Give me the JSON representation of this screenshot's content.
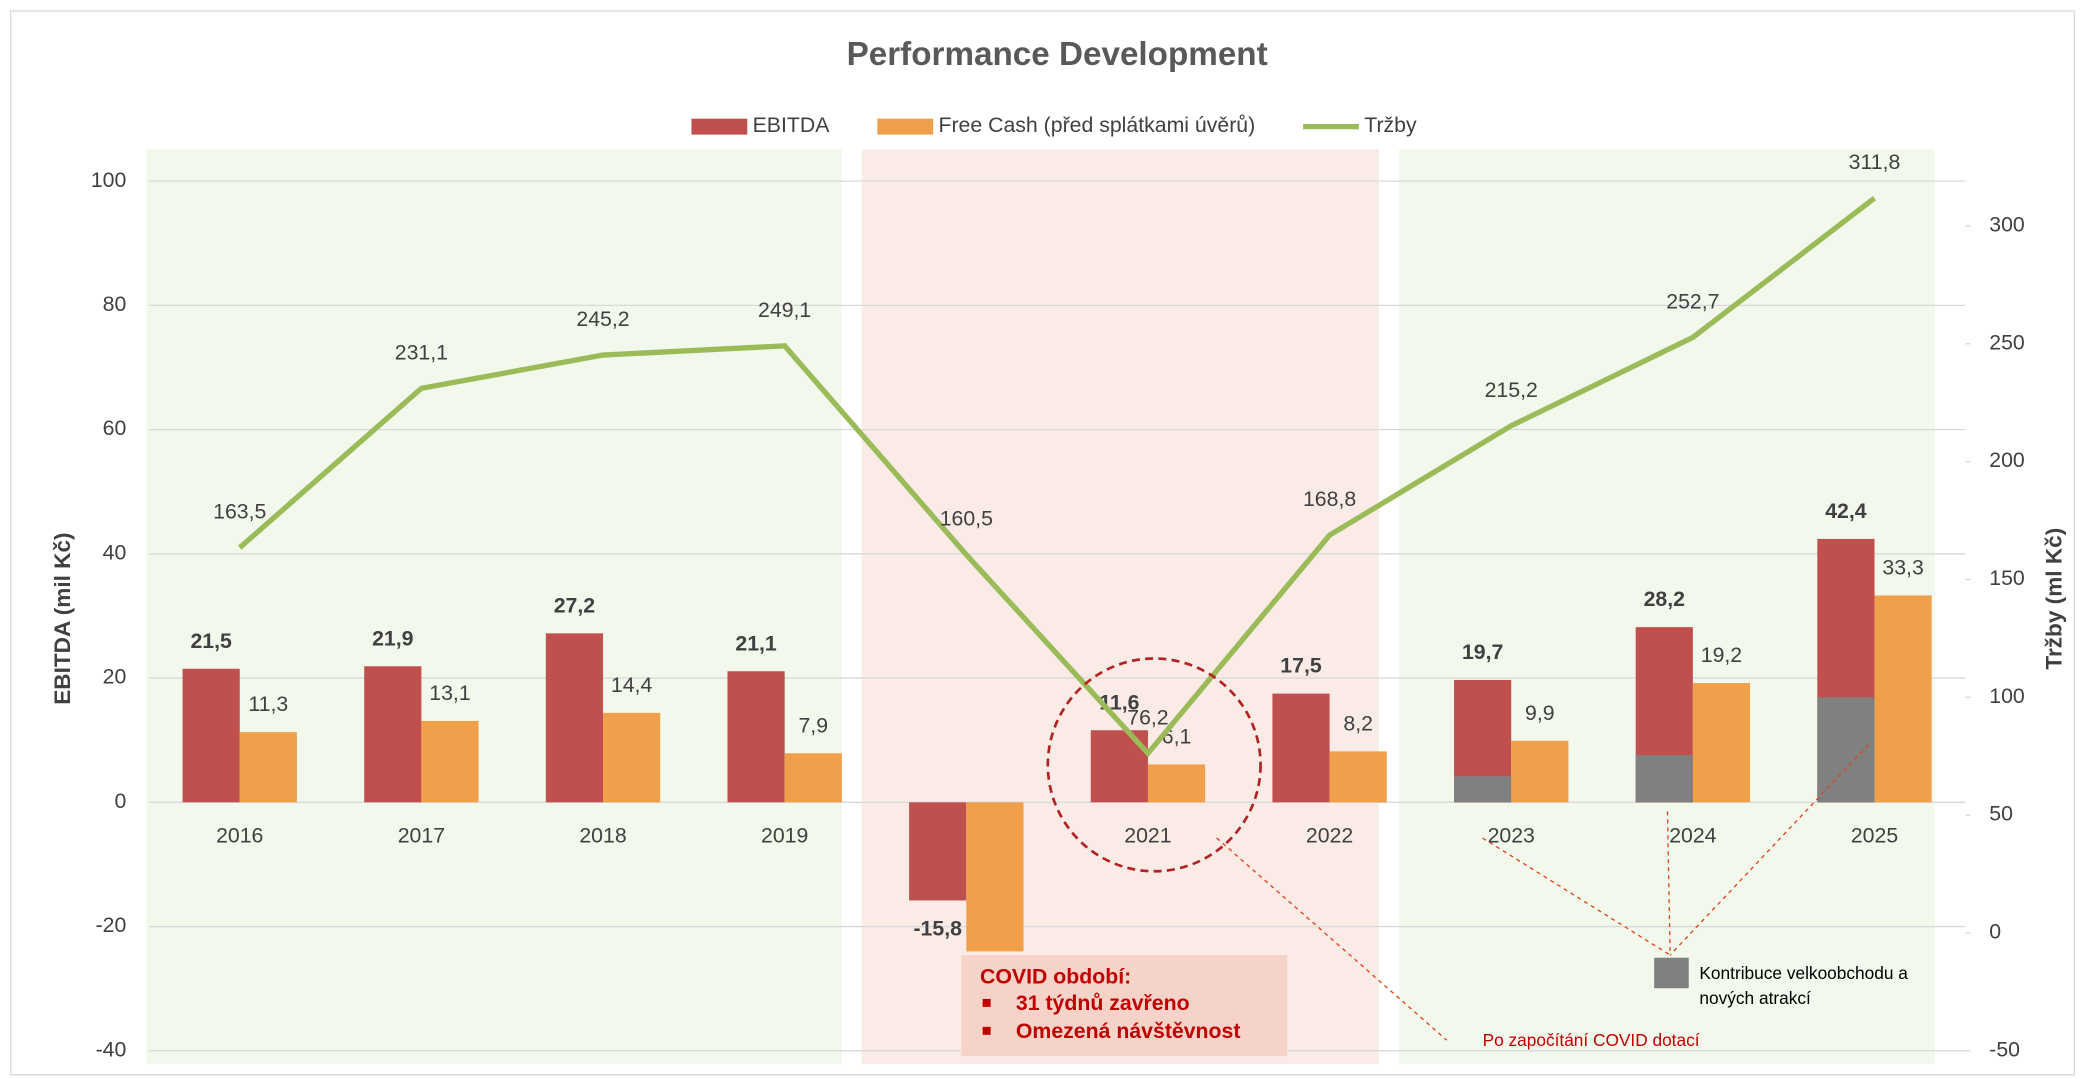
{
  "chart_data": {
    "type": "bar",
    "title": "Performance Development",
    "y_label": "EBITDA (mil Kč)",
    "y2_label": "Tržby (ml Kč)",
    "categories": [
      "2016",
      "2017",
      "2018",
      "2019",
      "2020",
      "2021",
      "2022",
      "2023",
      "2024",
      "2025"
    ],
    "series": [
      {
        "name": "EBITDA",
        "type": "bar",
        "color": "#c0504d",
        "values": [
          21.5,
          21.9,
          27.2,
          21.1,
          -15.8,
          11.6,
          17.5,
          19.7,
          28.2,
          42.4
        ],
        "value_labels": [
          "21,5",
          "21,9",
          "27,2",
          "21,1",
          "-15,8",
          "11,6",
          "17,5",
          "19,7",
          "28,2",
          "42,4"
        ]
      },
      {
        "name": "Free Cash (před splátkami úvěrů)",
        "type": "bar",
        "color": "#f0a04b",
        "values": [
          11.3,
          13.1,
          14.4,
          7.9,
          -24,
          6.1,
          8.2,
          9.9,
          19.2,
          33.3
        ],
        "value_labels": [
          "11,3",
          "13,1",
          "14,4",
          "7,9",
          null,
          "6,1",
          "8,2",
          "9,9",
          "19,2",
          "33,3"
        ]
      },
      {
        "name": "Tržby",
        "type": "line",
        "axis": "y2",
        "color": "#9bbb59",
        "values": [
          163.5,
          231.1,
          245.2,
          249.1,
          160.5,
          76.2,
          168.8,
          215.2,
          252.7,
          311.8
        ],
        "value_labels": [
          "163,5",
          "231,1",
          "245,2",
          "249,1",
          "160,5",
          "76,2",
          "168,8",
          "215,2",
          "252,7",
          "311,8"
        ]
      },
      {
        "name": "Kontribuce velkoobchodu a nových atrakcí",
        "type": "overlay",
        "color": "#808080",
        "values": [
          null,
          null,
          null,
          null,
          null,
          null,
          null,
          4.2,
          7.6,
          16.9
        ]
      }
    ],
    "ylim": [
      -40,
      100
    ],
    "yticks": [
      -40,
      -20,
      0,
      20,
      40,
      60,
      80,
      100
    ],
    "y2lim": [
      -50,
      319
    ],
    "y2ticks": [
      -50,
      0,
      50,
      100,
      150,
      200,
      250,
      300
    ],
    "grid": true,
    "legend": "top",
    "annotations": {
      "covid_title": "COVID období:",
      "covid_items": [
        "31 týdnů zavřeno",
        "Omezená návštěvnost"
      ],
      "subsidy_note": "Po započítání COVID dotací"
    }
  }
}
